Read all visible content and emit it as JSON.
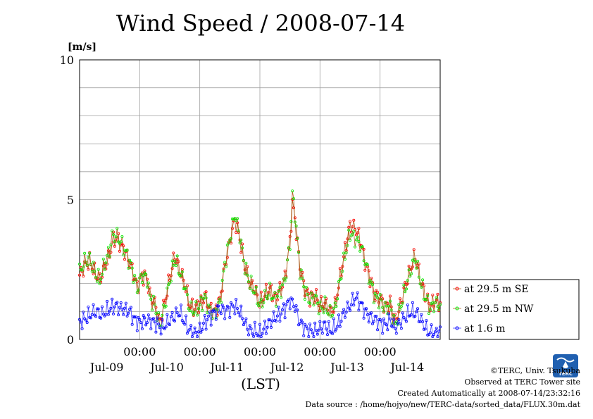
{
  "chart_data": {
    "type": "line",
    "title": "Wind Speed / 2008-07-14",
    "ylabel": "[m/s]",
    "xlabel": "(LST)",
    "ylim": [
      0,
      10
    ],
    "xlim": [
      0,
      144
    ],
    "yticks": [
      0,
      5,
      10
    ],
    "x_tick_labels": [
      "00:00",
      "00:00",
      "00:00",
      "00:00",
      "00:00"
    ],
    "x_tick_hours": [
      24,
      48,
      72,
      96,
      120
    ],
    "date_labels": [
      "Jul-09",
      "Jul-10",
      "Jul-11",
      "Jul-12",
      "Jul-13",
      "Jul-14"
    ],
    "date_label_hours": [
      12,
      36,
      60,
      84,
      108,
      132
    ],
    "grid": true,
    "legend_position": "right",
    "series": [
      {
        "name": "at 29.5 m SE",
        "color": "#ff0000",
        "line_color": "#b06020",
        "anchors": [
          [
            0,
            2.3
          ],
          [
            2,
            2.6
          ],
          [
            4,
            2.8
          ],
          [
            6,
            2.4
          ],
          [
            8,
            2.1
          ],
          [
            10,
            2.6
          ],
          [
            12,
            3.0
          ],
          [
            13,
            3.5
          ],
          [
            15,
            3.6
          ],
          [
            17,
            3.3
          ],
          [
            19,
            3.0
          ],
          [
            21,
            2.5
          ],
          [
            23,
            1.9
          ],
          [
            25,
            2.3
          ],
          [
            27,
            2.2
          ],
          [
            28,
            1.6
          ],
          [
            30,
            1.3
          ],
          [
            32,
            0.6
          ],
          [
            34,
            1.3
          ],
          [
            36,
            2.2
          ],
          [
            38,
            3.0
          ],
          [
            40,
            2.5
          ],
          [
            42,
            2.0
          ],
          [
            44,
            1.2
          ],
          [
            46,
            1.1
          ],
          [
            48,
            1.3
          ],
          [
            50,
            1.6
          ],
          [
            52,
            1.1
          ],
          [
            54,
            1.0
          ],
          [
            56,
            1.4
          ],
          [
            58,
            2.6
          ],
          [
            60,
            3.5
          ],
          [
            62,
            4.3
          ],
          [
            64,
            3.6
          ],
          [
            66,
            2.6
          ],
          [
            68,
            2.0
          ],
          [
            70,
            1.8
          ],
          [
            72,
            1.3
          ],
          [
            74,
            1.6
          ],
          [
            76,
            1.8
          ],
          [
            78,
            1.5
          ],
          [
            80,
            1.8
          ],
          [
            82,
            2.2
          ],
          [
            84,
            3.5
          ],
          [
            85,
            4.9
          ],
          [
            86,
            4.3
          ],
          [
            88,
            2.6
          ],
          [
            90,
            1.8
          ],
          [
            92,
            1.5
          ],
          [
            94,
            1.6
          ],
          [
            96,
            1.2
          ],
          [
            98,
            1.3
          ],
          [
            100,
            1.0
          ],
          [
            102,
            1.2
          ],
          [
            104,
            2.2
          ],
          [
            106,
            3.2
          ],
          [
            108,
            4.1
          ],
          [
            110,
            4.0
          ],
          [
            112,
            3.6
          ],
          [
            114,
            2.8
          ],
          [
            116,
            2.2
          ],
          [
            118,
            1.6
          ],
          [
            120,
            1.5
          ],
          [
            122,
            1.2
          ],
          [
            124,
            1.3
          ],
          [
            126,
            0.6
          ],
          [
            128,
            1.2
          ],
          [
            130,
            1.9
          ],
          [
            132,
            2.5
          ],
          [
            134,
            3.0
          ],
          [
            136,
            2.2
          ],
          [
            138,
            1.6
          ],
          [
            140,
            1.2
          ],
          [
            142,
            1.4
          ],
          [
            144,
            1.3
          ]
        ]
      },
      {
        "name": "at 29.5 m NW",
        "color": "#00ee00",
        "line_color": "#b06020",
        "anchors": [
          [
            0,
            2.4
          ],
          [
            2,
            2.8
          ],
          [
            4,
            2.9
          ],
          [
            6,
            2.4
          ],
          [
            8,
            2.1
          ],
          [
            10,
            2.7
          ],
          [
            12,
            3.2
          ],
          [
            13,
            3.7
          ],
          [
            15,
            3.7
          ],
          [
            17,
            3.4
          ],
          [
            19,
            3.0
          ],
          [
            21,
            2.5
          ],
          [
            23,
            1.8
          ],
          [
            25,
            2.3
          ],
          [
            27,
            2.2
          ],
          [
            28,
            1.5
          ],
          [
            30,
            1.2
          ],
          [
            32,
            0.5
          ],
          [
            34,
            1.2
          ],
          [
            36,
            2.1
          ],
          [
            38,
            2.9
          ],
          [
            40,
            2.4
          ],
          [
            42,
            1.9
          ],
          [
            44,
            1.1
          ],
          [
            46,
            1.0
          ],
          [
            48,
            1.2
          ],
          [
            50,
            1.5
          ],
          [
            52,
            1.0
          ],
          [
            54,
            0.9
          ],
          [
            56,
            1.3
          ],
          [
            58,
            2.7
          ],
          [
            60,
            3.6
          ],
          [
            62,
            4.5
          ],
          [
            64,
            3.7
          ],
          [
            66,
            2.6
          ],
          [
            68,
            2.0
          ],
          [
            70,
            1.7
          ],
          [
            72,
            1.2
          ],
          [
            74,
            1.5
          ],
          [
            76,
            1.7
          ],
          [
            78,
            1.4
          ],
          [
            80,
            1.7
          ],
          [
            82,
            2.1
          ],
          [
            84,
            3.4
          ],
          [
            85,
            5.2
          ],
          [
            86,
            4.5
          ],
          [
            88,
            2.5
          ],
          [
            90,
            1.7
          ],
          [
            92,
            1.4
          ],
          [
            94,
            1.5
          ],
          [
            96,
            1.1
          ],
          [
            98,
            1.2
          ],
          [
            100,
            0.9
          ],
          [
            102,
            1.1
          ],
          [
            104,
            2.1
          ],
          [
            106,
            3.0
          ],
          [
            108,
            3.8
          ],
          [
            110,
            3.6
          ],
          [
            112,
            3.4
          ],
          [
            114,
            2.8
          ],
          [
            116,
            2.1
          ],
          [
            118,
            1.5
          ],
          [
            120,
            1.4
          ],
          [
            122,
            1.1
          ],
          [
            124,
            1.2
          ],
          [
            126,
            0.5
          ],
          [
            128,
            1.1
          ],
          [
            130,
            1.8
          ],
          [
            132,
            2.4
          ],
          [
            134,
            2.9
          ],
          [
            136,
            2.1
          ],
          [
            138,
            1.5
          ],
          [
            140,
            1.1
          ],
          [
            142,
            1.3
          ],
          [
            144,
            1.2
          ]
        ]
      },
      {
        "name": "at 1.6 m",
        "color": "#0000ff",
        "line_color": "#4040ff",
        "anchors": [
          [
            0,
            0.6
          ],
          [
            3,
            0.8
          ],
          [
            6,
            1.0
          ],
          [
            9,
            0.9
          ],
          [
            12,
            1.1
          ],
          [
            14,
            1.2
          ],
          [
            17,
            1.1
          ],
          [
            20,
            1.0
          ],
          [
            22,
            0.7
          ],
          [
            24,
            0.6
          ],
          [
            27,
            0.7
          ],
          [
            30,
            0.6
          ],
          [
            33,
            0.4
          ],
          [
            36,
            0.7
          ],
          [
            40,
            1.0
          ],
          [
            42,
            0.6
          ],
          [
            44,
            0.3
          ],
          [
            47,
            0.2
          ],
          [
            50,
            0.6
          ],
          [
            53,
            0.9
          ],
          [
            56,
            1.1
          ],
          [
            58,
            1.0
          ],
          [
            60,
            1.1
          ],
          [
            62,
            1.2
          ],
          [
            64,
            1.0
          ],
          [
            66,
            0.6
          ],
          [
            68,
            0.3
          ],
          [
            70,
            0.3
          ],
          [
            72,
            0.2
          ],
          [
            74,
            0.4
          ],
          [
            77,
            0.7
          ],
          [
            80,
            0.9
          ],
          [
            82,
            1.1
          ],
          [
            84,
            1.4
          ],
          [
            86,
            1.2
          ],
          [
            88,
            0.6
          ],
          [
            90,
            0.4
          ],
          [
            92,
            0.3
          ],
          [
            94,
            0.3
          ],
          [
            96,
            0.4
          ],
          [
            98,
            0.5
          ],
          [
            100,
            0.3
          ],
          [
            103,
            0.5
          ],
          [
            106,
            1.0
          ],
          [
            108,
            1.2
          ],
          [
            110,
            1.5
          ],
          [
            112,
            1.3
          ],
          [
            114,
            1.0
          ],
          [
            116,
            0.8
          ],
          [
            118,
            0.7
          ],
          [
            120,
            0.6
          ],
          [
            122,
            0.5
          ],
          [
            124,
            0.7
          ],
          [
            126,
            0.4
          ],
          [
            128,
            0.6
          ],
          [
            131,
            0.9
          ],
          [
            133,
            1.0
          ],
          [
            135,
            0.9
          ],
          [
            137,
            0.6
          ],
          [
            139,
            0.3
          ],
          [
            141,
            0.2
          ],
          [
            143,
            0.2
          ],
          [
            144,
            0.3
          ]
        ]
      }
    ]
  },
  "footer": {
    "credit": "©TERC, Univ. Tsukuba",
    "observed": "Observed at TERC Tower site",
    "created": "Created Automatically at 2008-07-14/23:32:16",
    "source": "Data source : /home/hojyo/new/TERC-data/sorted_data/FLUX.30m.dat"
  },
  "logo": {
    "text": "TERC",
    "color": "#2060b0"
  }
}
